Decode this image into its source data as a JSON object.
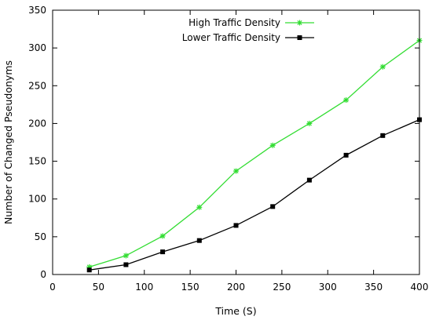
{
  "chart_data": {
    "type": "line",
    "xlabel": "Time (S)",
    "ylabel": "Number of Changed Pseudonyms",
    "xlim": [
      0,
      400
    ],
    "ylim": [
      0,
      350
    ],
    "xticks": [
      0,
      50,
      100,
      150,
      200,
      250,
      300,
      350,
      400
    ],
    "yticks": [
      0,
      50,
      100,
      150,
      200,
      250,
      300,
      350
    ],
    "grid": false,
    "legend_position": "top-right",
    "x": [
      40,
      80,
      120,
      160,
      200,
      240,
      280,
      320,
      360,
      400
    ],
    "series": [
      {
        "name": "High Traffic Density",
        "color": "#33dd33",
        "marker": "star",
        "values": [
          10,
          25,
          51,
          89,
          137,
          171,
          200,
          231,
          275,
          310
        ]
      },
      {
        "name": "Lower Traffic Density",
        "color": "#000000",
        "marker": "square",
        "values": [
          6,
          13,
          30,
          45,
          65,
          90,
          125,
          158,
          184,
          205
        ]
      }
    ]
  }
}
